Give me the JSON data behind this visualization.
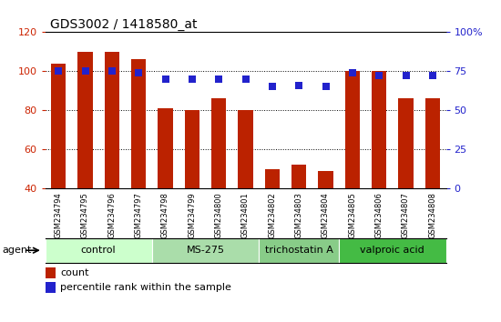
{
  "title": "GDS3002 / 1418580_at",
  "samples": [
    "GSM234794",
    "GSM234795",
    "GSM234796",
    "GSM234797",
    "GSM234798",
    "GSM234799",
    "GSM234800",
    "GSM234801",
    "GSM234802",
    "GSM234803",
    "GSM234804",
    "GSM234805",
    "GSM234806",
    "GSM234807",
    "GSM234808"
  ],
  "counts": [
    104,
    110,
    110,
    106,
    81,
    80,
    86,
    80,
    50,
    52,
    49,
    100,
    100,
    86,
    86
  ],
  "percentiles": [
    75,
    75,
    75,
    74,
    70,
    70,
    70,
    70,
    65,
    66,
    65,
    74,
    72,
    72,
    72
  ],
  "bar_color": "#bb2200",
  "dot_color": "#2222cc",
  "ylim_left": [
    40,
    120
  ],
  "ylim_right": [
    0,
    100
  ],
  "yticks_left": [
    40,
    60,
    80,
    100,
    120
  ],
  "yticks_right": [
    0,
    25,
    50,
    75,
    100
  ],
  "ytick_labels_right": [
    "0",
    "25",
    "50",
    "75",
    "100%"
  ],
  "groups": [
    {
      "label": "control",
      "start": 0,
      "end": 3,
      "color": "#ccffcc"
    },
    {
      "label": "MS-275",
      "start": 4,
      "end": 7,
      "color": "#aaddaa"
    },
    {
      "label": "trichostatin A",
      "start": 8,
      "end": 10,
      "color": "#88cc88"
    },
    {
      "label": "valproic acid",
      "start": 11,
      "end": 14,
      "color": "#44bb44"
    }
  ],
  "agent_label": "agent",
  "legend_count_label": "count",
  "legend_percentile_label": "percentile rank within the sample",
  "bar_width": 0.55,
  "dot_size": 40,
  "background_color": "#ffffff",
  "left_tick_color": "#cc2200",
  "right_tick_color": "#2222cc",
  "sample_bg_color": "#cccccc",
  "grid_color": "#000000"
}
